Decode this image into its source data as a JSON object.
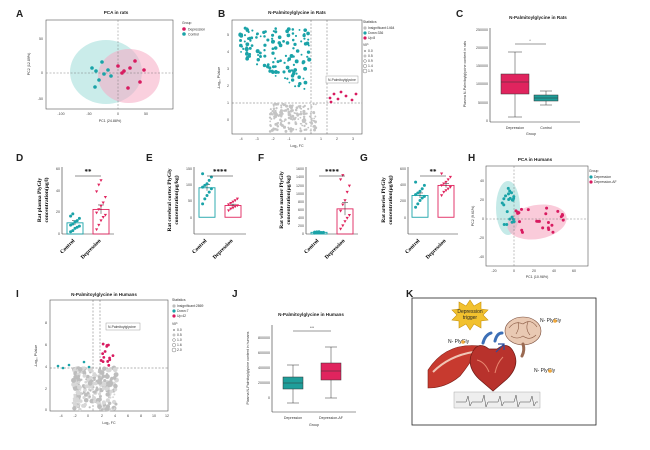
{
  "panels": {
    "a": {
      "letter": "A",
      "title": "PCA in rats",
      "legend_title": "Group",
      "legend_items": [
        "Depression",
        "Control"
      ],
      "xlabel": "PC1 (24.88%)",
      "ylabel": "PC2 (12.89%)",
      "x_ticks": [
        "-100",
        "-50",
        "0",
        "50"
      ],
      "y_ticks": [
        "50",
        "0",
        "-50"
      ]
    },
    "b": {
      "letter": "B",
      "title": "N-Palmitoylglycine in Rats",
      "legend_title": "Statistics",
      "legend_items": [
        "Insignificant:1464",
        "Down:336",
        "Up:8"
      ],
      "vip_title": "VIP",
      "vip_items": [
        "0.0",
        "0.5",
        "0.9",
        "1.4",
        "1.9"
      ],
      "callout": "N-Palmitoylglycine",
      "xlabel": "Log₂ FC",
      "ylabel": "-Log₁₀ PValue",
      "x_ticks": [
        "-4",
        "-3",
        "-2",
        "-1",
        "0",
        "1",
        "2",
        "3"
      ],
      "y_ticks": [
        "5",
        "4",
        "3",
        "2",
        "1",
        "0"
      ]
    },
    "c": {
      "letter": "C",
      "title": "N-Palmitoylglycine in Rats",
      "sig": "*",
      "categories": [
        "Depression",
        "Control"
      ],
      "xlabel": "Group",
      "ylabel": "Plasma N-Palmitoylglycine content in rats",
      "y_ticks": [
        "250000",
        "200000",
        "150000",
        "100000",
        "50000",
        "0"
      ]
    },
    "d": {
      "letter": "D",
      "sig": "**",
      "categories": [
        "Control",
        "Depression"
      ],
      "ylabel": [
        "Rat plasma PlyGly",
        "concentration(μg/l)"
      ],
      "y_ticks": [
        "60",
        "40",
        "20",
        "0"
      ]
    },
    "e": {
      "letter": "E",
      "sig": "****",
      "categories": [
        "Control",
        "Depression"
      ],
      "ylabel": [
        "Rat cerebral cortex PlyGly",
        "concentration(μg/kg)"
      ],
      "y_ticks": [
        "150",
        "100",
        "50",
        "0",
        ""
      ]
    },
    "f": {
      "letter": "F",
      "sig": "****",
      "categories": [
        "Control",
        "Depression"
      ],
      "ylabel": [
        "Rat white matter PlyGly",
        "concentration(μg/kg)"
      ],
      "y_ticks": [
        "1600",
        "1400",
        "1200",
        "1000",
        "800",
        "600",
        "400",
        "200",
        "0"
      ]
    },
    "g": {
      "letter": "G",
      "sig": "**",
      "categories": [
        "Control",
        "Depression"
      ],
      "ylabel": [
        "Rat arteries PlyGly",
        "concentration(μg/kg)"
      ],
      "y_ticks": [
        "600",
        "400",
        "200",
        "0",
        ""
      ]
    },
    "h": {
      "letter": "H",
      "title": "PCA in Humans",
      "legend_title": "Group",
      "legend_items": [
        "Depression",
        "Depression-AF"
      ],
      "xlabel": "PC1 (10.98%)",
      "ylabel": "PC2 (9.61%)",
      "x_ticks": [
        "-20",
        "0",
        "20",
        "40",
        "60"
      ],
      "y_ticks": [
        "40",
        "20",
        "0",
        "-20",
        "-40"
      ]
    },
    "i": {
      "letter": "I",
      "title": "N-Palmitoylglycine in Humans",
      "legend_title": "Statistics",
      "legend_items": [
        "Insignificant:2869",
        "Down:7",
        "Up:42"
      ],
      "vip_title": "VIP",
      "vip_items": [
        "0.0",
        "0.5",
        "1.0",
        "1.6",
        "2.0"
      ],
      "callout": "N-Palmitoylglycine",
      "xlabel": "Log₂ FC",
      "ylabel": "-Log₁₀ PValue",
      "x_ticks": [
        "-4",
        "-2",
        "0",
        "2",
        "4",
        "6",
        "8",
        "10",
        "12"
      ],
      "y_ticks": [
        "8",
        "6",
        "4",
        "2",
        "0"
      ]
    },
    "j": {
      "letter": "J",
      "title": "N-Palmitoylglycine in Humans",
      "sig": "***",
      "categories": [
        "Depression",
        "Depression-AF"
      ],
      "xlabel": "Group",
      "ylabel": "Plasma N-Palmitoylglycine content in humans",
      "y_ticks": [
        "800000",
        "600000",
        "400000",
        "200000",
        "0"
      ]
    },
    "k": {
      "letter": "K",
      "trigger": [
        "Depression",
        "trigger"
      ],
      "labels": [
        "N- PlyGly",
        "N- PlyGly",
        "N- PlyGly"
      ]
    }
  },
  "colors": {
    "depression": "#d81b60",
    "control": "#1aa3a8",
    "insignificant": "#bdbdbd",
    "depression_box": "#e0245e",
    "control_box": "#1f9e9a"
  },
  "chart_data": [
    {
      "panel": "D",
      "type": "bar",
      "categories": [
        "Control",
        "Depression"
      ],
      "values": [
        10,
        22
      ],
      "errors": [
        2,
        4
      ],
      "points": [
        [
          2,
          3,
          5,
          6,
          7,
          8,
          9,
          11,
          12,
          14,
          16,
          18
        ],
        [
          4,
          8,
          12,
          15,
          17,
          19,
          22,
          25,
          28,
          33,
          38,
          44,
          48
        ]
      ],
      "colors": [
        "#1aa3a8",
        "#e0245e"
      ],
      "ylim": [
        0,
        60
      ]
    },
    {
      "panel": "E",
      "type": "bar",
      "categories": [
        "Control",
        "Depression"
      ],
      "values": [
        88,
        35
      ],
      "errors": [
        9,
        4
      ],
      "points": [
        [
          40,
          55,
          65,
          75,
          85,
          90,
          95,
          100,
          110,
          120,
          130
        ],
        [
          20,
          25,
          28,
          32,
          35,
          38,
          42,
          46,
          50,
          55
        ]
      ],
      "colors": [
        "#1aa3a8",
        "#e0245e"
      ],
      "ylim": [
        -50,
        150
      ]
    },
    {
      "panel": "F",
      "type": "bar",
      "categories": [
        "Control",
        "Depression"
      ],
      "values": [
        40,
        600
      ],
      "errors": [
        8,
        150
      ],
      "points": [
        [
          20,
          25,
          30,
          35,
          40,
          45,
          50,
          55
        ],
        [
          120,
          200,
          300,
          380,
          450,
          550,
          700,
          800,
          1000,
          1150,
          1300,
          1400
        ]
      ],
      "colors": [
        "#1aa3a8",
        "#e0245e"
      ],
      "ylim": [
        0,
        1600
      ]
    },
    {
      "panel": "G",
      "type": "bar",
      "categories": [
        "Control",
        "Depression"
      ],
      "values": [
        260,
        380
      ],
      "errors": [
        30,
        25
      ],
      "points": [
        [
          120,
          160,
          200,
          230,
          250,
          270,
          290,
          310,
          340,
          380,
          420
        ],
        [
          260,
          300,
          320,
          340,
          360,
          380,
          400,
          420,
          450,
          480,
          520
        ]
      ],
      "colors": [
        "#1aa3a8",
        "#e0245e"
      ],
      "ylim": [
        -200,
        600
      ]
    }
  ]
}
